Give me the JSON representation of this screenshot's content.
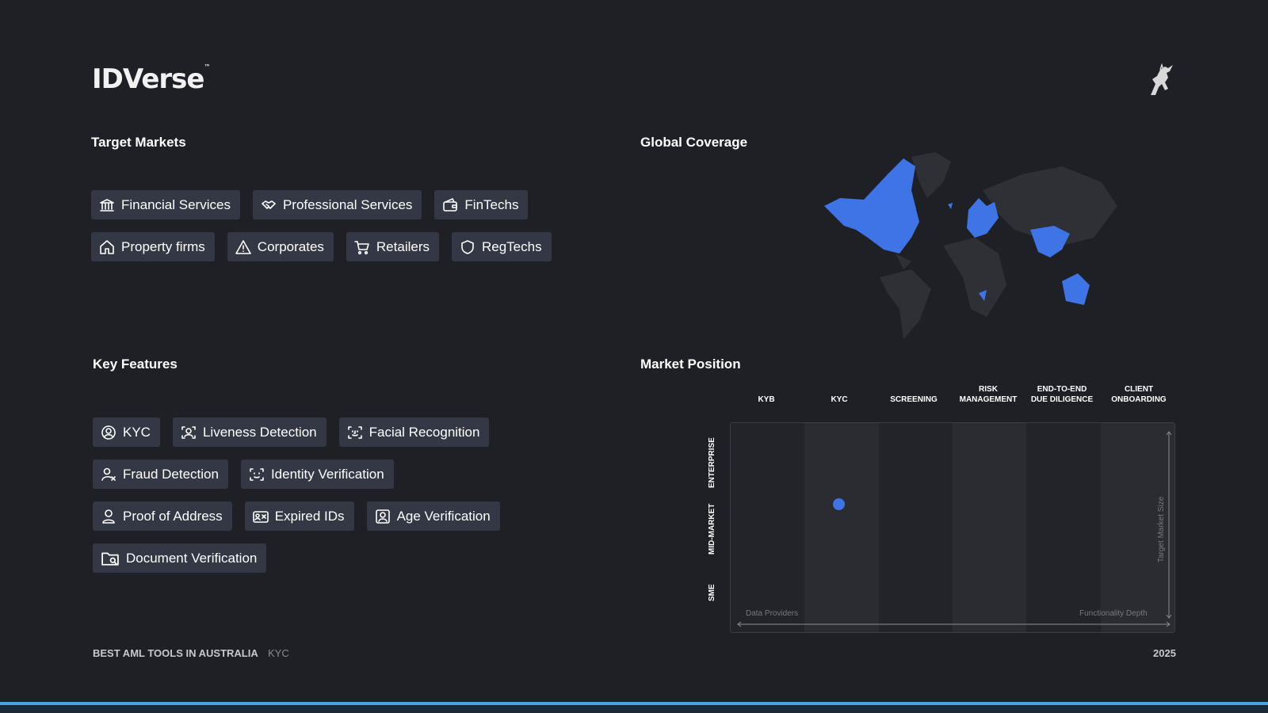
{
  "brand": {
    "logo_text": "IDVerse",
    "trademark": "™",
    "accent_color": "#3f74e6"
  },
  "target_markets": {
    "title": "Target Markets",
    "items": [
      {
        "label": "Financial Services",
        "icon": "bank-icon"
      },
      {
        "label": "Professional Services",
        "icon": "handshake-icon"
      },
      {
        "label": "FinTechs",
        "icon": "wallet-icon"
      },
      {
        "label": "Property firms",
        "icon": "home-icon"
      },
      {
        "label": "Corporates",
        "icon": "warning-triangle-icon"
      },
      {
        "label": "Retailers",
        "icon": "cart-icon"
      },
      {
        "label": "RegTechs",
        "icon": "shield-icon"
      }
    ]
  },
  "global_coverage": {
    "title": "Global Coverage"
  },
  "key_features": {
    "title": "Key Features",
    "items": [
      {
        "label": "KYC",
        "icon": "user-circle-icon"
      },
      {
        "label": "Liveness Detection",
        "icon": "face-scan-icon"
      },
      {
        "label": "Facial Recognition",
        "icon": "face-id-icon"
      },
      {
        "label": "Fraud Detection",
        "icon": "user-x-icon"
      },
      {
        "label": "Identity Verification",
        "icon": "scan-user-icon"
      },
      {
        "label": "Proof of Address",
        "icon": "user-pin-icon"
      },
      {
        "label": "Expired IDs",
        "icon": "id-card-x-icon"
      },
      {
        "label": "Age Verification",
        "icon": "user-square-icon"
      },
      {
        "label": "Document Verification",
        "icon": "folder-search-icon"
      }
    ]
  },
  "market_position": {
    "title": "Market Position",
    "columns": [
      {
        "line1": "KYB",
        "line2": ""
      },
      {
        "line1": "KYC",
        "line2": ""
      },
      {
        "line1": "SCREENING",
        "line2": ""
      },
      {
        "line1": "RISK",
        "line2": "MANAGEMENT"
      },
      {
        "line1": "END-TO-END",
        "line2": "DUE DILIGENCE"
      },
      {
        "line1": "CLIENT",
        "line2": "ONBOARDING"
      }
    ],
    "rows": [
      "ENTERPRISE",
      "MID-MARKET",
      "SME"
    ],
    "x_axis_start": "Data Providers",
    "x_axis_end": "Functionality Depth",
    "y_axis_label": "Target Market Size",
    "position": {
      "column": "KYC",
      "row": "MID-MARKET"
    }
  },
  "footer": {
    "title": "BEST AML TOOLS IN AUSTRALIA",
    "category": "KYC",
    "year": "2025"
  }
}
